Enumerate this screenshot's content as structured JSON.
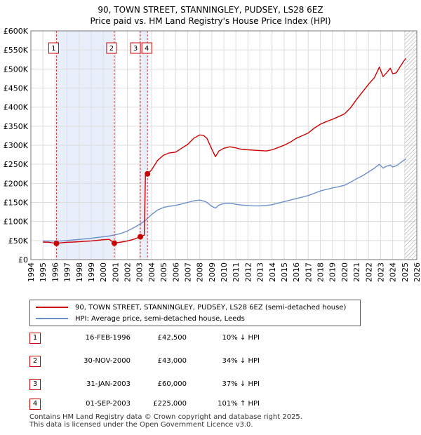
{
  "title": {
    "line1": "90, TOWN STREET, STANNINGLEY, PUDSEY, LS28 6EZ",
    "line2": "Price paid vs. HM Land Registry's House Price Index (HPI)"
  },
  "chart_data": {
    "type": "line",
    "title": "90, TOWN STREET, STANNINGLEY, PUDSEY, LS28 6EZ — Price paid vs. HM Land Registry's House Price Index (HPI)",
    "xlabel": "",
    "ylabel": "",
    "xlim": [
      1994,
      2026
    ],
    "ylim": [
      0,
      600000
    ],
    "x_ticks": [
      "1994",
      "1995",
      "1996",
      "1997",
      "1998",
      "1999",
      "2000",
      "2001",
      "2002",
      "2003",
      "2004",
      "2005",
      "2006",
      "2007",
      "2008",
      "2009",
      "2010",
      "2011",
      "2012",
      "2013",
      "2014",
      "2015",
      "2016",
      "2017",
      "2018",
      "2019",
      "2020",
      "2021",
      "2022",
      "2023",
      "2024",
      "2025",
      "2026"
    ],
    "y_ticks": [
      {
        "value": 0,
        "label": "£0"
      },
      {
        "value": 50000,
        "label": "£50K"
      },
      {
        "value": 100000,
        "label": "£100K"
      },
      {
        "value": 150000,
        "label": "£150K"
      },
      {
        "value": 200000,
        "label": "£200K"
      },
      {
        "value": 250000,
        "label": "£250K"
      },
      {
        "value": 300000,
        "label": "£300K"
      },
      {
        "value": 350000,
        "label": "£350K"
      },
      {
        "value": 400000,
        "label": "£400K"
      },
      {
        "value": 450000,
        "label": "£450K"
      },
      {
        "value": 500000,
        "label": "£500K"
      },
      {
        "value": 550000,
        "label": "£550K"
      },
      {
        "value": 600000,
        "label": "£600K"
      }
    ],
    "grid": true,
    "shaded_ranges": [
      [
        1996.12,
        2000.92
      ],
      [
        2003.08,
        2003.67
      ]
    ],
    "future_hatch_from": 2025.0,
    "series": [
      {
        "name": "90, TOWN STREET, STANNINGLEY, PUDSEY, LS28 6EZ (semi-detached house)",
        "color": "#cc0000",
        "points": [
          [
            1995.0,
            46000
          ],
          [
            1995.5,
            45500
          ],
          [
            1996.12,
            42500
          ],
          [
            1996.5,
            44000
          ],
          [
            1997.0,
            45500
          ],
          [
            1997.5,
            46000
          ],
          [
            1998.0,
            47000
          ],
          [
            1998.5,
            48000
          ],
          [
            1999.0,
            49000
          ],
          [
            1999.5,
            50500
          ],
          [
            2000.0,
            52000
          ],
          [
            2000.5,
            53000
          ],
          [
            2000.92,
            43000
          ],
          [
            2001.5,
            46000
          ],
          [
            2002.0,
            49000
          ],
          [
            2002.5,
            53000
          ],
          [
            2003.08,
            60000
          ],
          [
            2003.4,
            64000
          ],
          [
            2003.5,
            225000
          ],
          [
            2003.67,
            225000
          ],
          [
            2004.0,
            235000
          ],
          [
            2004.5,
            260000
          ],
          [
            2005.0,
            274000
          ],
          [
            2005.5,
            280000
          ],
          [
            2006.0,
            282000
          ],
          [
            2006.5,
            292000
          ],
          [
            2007.0,
            302000
          ],
          [
            2007.5,
            318000
          ],
          [
            2008.0,
            327000
          ],
          [
            2008.3,
            326000
          ],
          [
            2008.6,
            318000
          ],
          [
            2009.0,
            290000
          ],
          [
            2009.3,
            270000
          ],
          [
            2009.6,
            285000
          ],
          [
            2010.0,
            292000
          ],
          [
            2010.5,
            296000
          ],
          [
            2011.0,
            293000
          ],
          [
            2011.5,
            289000
          ],
          [
            2012.0,
            288000
          ],
          [
            2012.5,
            287000
          ],
          [
            2013.0,
            286000
          ],
          [
            2013.5,
            285000
          ],
          [
            2014.0,
            288000
          ],
          [
            2014.5,
            294000
          ],
          [
            2015.0,
            300000
          ],
          [
            2015.5,
            308000
          ],
          [
            2016.0,
            318000
          ],
          [
            2016.5,
            325000
          ],
          [
            2017.0,
            332000
          ],
          [
            2017.5,
            345000
          ],
          [
            2018.0,
            355000
          ],
          [
            2018.5,
            362000
          ],
          [
            2019.0,
            368000
          ],
          [
            2019.5,
            375000
          ],
          [
            2020.0,
            382000
          ],
          [
            2020.5,
            398000
          ],
          [
            2021.0,
            420000
          ],
          [
            2021.5,
            440000
          ],
          [
            2022.0,
            460000
          ],
          [
            2022.5,
            478000
          ],
          [
            2022.9,
            505000
          ],
          [
            2023.2,
            480000
          ],
          [
            2023.5,
            490000
          ],
          [
            2023.8,
            502000
          ],
          [
            2024.0,
            488000
          ],
          [
            2024.3,
            490000
          ],
          [
            2024.6,
            505000
          ],
          [
            2024.9,
            520000
          ],
          [
            2025.1,
            528000
          ]
        ]
      },
      {
        "name": "HPI: Average price, semi-detached house, Leeds",
        "color": "#6a8fcb",
        "points": [
          [
            1995.0,
            49000
          ],
          [
            1995.5,
            48500
          ],
          [
            1996.0,
            48500
          ],
          [
            1996.5,
            49000
          ],
          [
            1997.0,
            50000
          ],
          [
            1997.5,
            51500
          ],
          [
            1998.0,
            53000
          ],
          [
            1998.5,
            54500
          ],
          [
            1999.0,
            56000
          ],
          [
            1999.5,
            58000
          ],
          [
            2000.0,
            60000
          ],
          [
            2000.5,
            62000
          ],
          [
            2001.0,
            65000
          ],
          [
            2001.5,
            69000
          ],
          [
            2002.0,
            75000
          ],
          [
            2002.5,
            83000
          ],
          [
            2003.0,
            92000
          ],
          [
            2003.5,
            103000
          ],
          [
            2004.0,
            118000
          ],
          [
            2004.5,
            130000
          ],
          [
            2005.0,
            137000
          ],
          [
            2005.5,
            140000
          ],
          [
            2006.0,
            142000
          ],
          [
            2006.5,
            146000
          ],
          [
            2007.0,
            150000
          ],
          [
            2007.5,
            154000
          ],
          [
            2008.0,
            156000
          ],
          [
            2008.5,
            152000
          ],
          [
            2009.0,
            140000
          ],
          [
            2009.3,
            135000
          ],
          [
            2009.6,
            143000
          ],
          [
            2010.0,
            147000
          ],
          [
            2010.5,
            148000
          ],
          [
            2011.0,
            145000
          ],
          [
            2011.5,
            143000
          ],
          [
            2012.0,
            142000
          ],
          [
            2012.5,
            141000
          ],
          [
            2013.0,
            141000
          ],
          [
            2013.5,
            142000
          ],
          [
            2014.0,
            144000
          ],
          [
            2014.5,
            148000
          ],
          [
            2015.0,
            152000
          ],
          [
            2015.5,
            156000
          ],
          [
            2016.0,
            160000
          ],
          [
            2016.5,
            164000
          ],
          [
            2017.0,
            168000
          ],
          [
            2017.5,
            174000
          ],
          [
            2018.0,
            180000
          ],
          [
            2018.5,
            184000
          ],
          [
            2019.0,
            188000
          ],
          [
            2019.5,
            191000
          ],
          [
            2020.0,
            195000
          ],
          [
            2020.5,
            203000
          ],
          [
            2021.0,
            212000
          ],
          [
            2021.5,
            220000
          ],
          [
            2022.0,
            230000
          ],
          [
            2022.5,
            240000
          ],
          [
            2022.9,
            250000
          ],
          [
            2023.2,
            240000
          ],
          [
            2023.5,
            245000
          ],
          [
            2023.8,
            248000
          ],
          [
            2024.0,
            243000
          ],
          [
            2024.3,
            246000
          ],
          [
            2024.6,
            253000
          ],
          [
            2024.9,
            260000
          ],
          [
            2025.1,
            264000
          ]
        ]
      }
    ],
    "annotations": [
      {
        "label": "1",
        "x": 1996.12,
        "y": 42500
      },
      {
        "label": "2",
        "x": 2000.92,
        "y": 43000
      },
      {
        "label": "3",
        "x": 2003.08,
        "y": 60000
      },
      {
        "label": "4",
        "x": 2003.67,
        "y": 225000
      }
    ]
  },
  "legend": {
    "items": [
      {
        "label": "90, TOWN STREET, STANNINGLEY, PUDSEY, LS28 6EZ (semi-detached house)",
        "color": "#cc0000"
      },
      {
        "label": "HPI: Average price, semi-detached house, Leeds",
        "color": "#6a8fcb"
      }
    ]
  },
  "sales": [
    {
      "num": "1",
      "date": "16-FEB-1996",
      "price": "£42,500",
      "hpi": "10% ↓ HPI"
    },
    {
      "num": "2",
      "date": "30-NOV-2000",
      "price": "£43,000",
      "hpi": "34% ↓ HPI"
    },
    {
      "num": "3",
      "date": "31-JAN-2003",
      "price": "£60,000",
      "hpi": "37% ↓ HPI"
    },
    {
      "num": "4",
      "date": "01-SEP-2003",
      "price": "£225,000",
      "hpi": "101% ↑ HPI"
    }
  ],
  "footer": {
    "line1": "Contains HM Land Registry data © Crown copyright and database right 2025.",
    "line2": "This data is licensed under the Open Government Licence v3.0."
  }
}
